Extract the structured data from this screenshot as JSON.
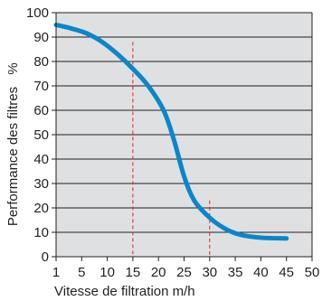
{
  "chart_data": {
    "type": "line",
    "title": "",
    "xlabel": "Vitesse de filtration m/h",
    "ylabel": "Performance des filtres",
    "ylabel_unit": "%",
    "xlim": [
      0,
      50
    ],
    "ylim": [
      0,
      100
    ],
    "x_ticks": [
      0,
      5,
      10,
      15,
      20,
      25,
      30,
      35,
      40,
      45,
      50
    ],
    "x_tick_labels": [
      "1",
      "5",
      "10",
      "15",
      "20",
      "25",
      "30",
      "35",
      "40",
      "45",
      "50"
    ],
    "y_ticks": [
      0,
      10,
      20,
      30,
      40,
      50,
      60,
      70,
      80,
      90,
      100
    ],
    "y_tick_labels": [
      "0",
      "10",
      "20",
      "30",
      "40",
      "50",
      "60",
      "70",
      "80",
      "90",
      "100"
    ],
    "grid": true,
    "colors": {
      "plot_background": "#dfe0e2",
      "grid": "#231f20",
      "axis": "#231f20",
      "line": "#0a86c9",
      "markers": "#e2231a"
    },
    "series": [
      {
        "x": [
          0,
          3,
          6,
          9,
          12,
          15,
          18,
          21,
          23,
          25,
          27,
          30,
          33,
          36,
          40,
          45
        ],
        "y": [
          95,
          93.5,
          91.5,
          88,
          83,
          77,
          70,
          60,
          48,
          33,
          23,
          16,
          11.5,
          9,
          7.8,
          7.5
        ]
      }
    ],
    "reference_lines": [
      {
        "x": 15,
        "y_top": 88
      },
      {
        "x": 30,
        "y_top": 23
      }
    ]
  }
}
